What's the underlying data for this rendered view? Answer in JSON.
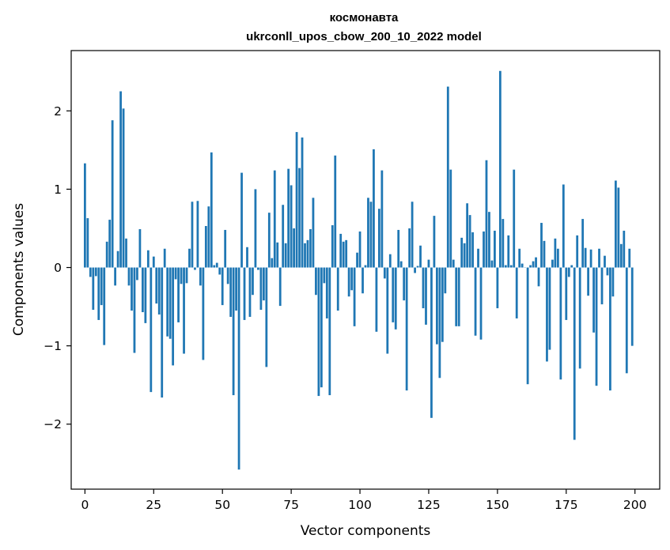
{
  "chart_data": {
    "type": "bar",
    "title": "космонавта",
    "subtitle": "ukrconll_upos_cbow_200_10_2022 model",
    "xlabel": "Vector components",
    "ylabel": "Components values",
    "xlim": [
      -5,
      209
    ],
    "ylim": [
      -2.83,
      2.77
    ],
    "xticks": [
      0,
      25,
      50,
      75,
      100,
      125,
      150,
      175,
      200
    ],
    "yticks": [
      -2,
      -1,
      0,
      1,
      2
    ],
    "ytick_labels": [
      "−2",
      "−1",
      "0",
      "1",
      "2"
    ],
    "grid": false,
    "color": "#1f77b4",
    "x": [
      0,
      1,
      2,
      3,
      4,
      5,
      6,
      7,
      8,
      9,
      10,
      11,
      12,
      13,
      14,
      15,
      16,
      17,
      18,
      19,
      20,
      21,
      22,
      23,
      24,
      25,
      26,
      27,
      28,
      29,
      30,
      31,
      32,
      33,
      34,
      35,
      36,
      37,
      38,
      39,
      40,
      41,
      42,
      43,
      44,
      45,
      46,
      47,
      48,
      49,
      50,
      51,
      52,
      53,
      54,
      55,
      56,
      57,
      58,
      59,
      60,
      61,
      62,
      63,
      64,
      65,
      66,
      67,
      68,
      69,
      70,
      71,
      72,
      73,
      74,
      75,
      76,
      77,
      78,
      79,
      80,
      81,
      82,
      83,
      84,
      85,
      86,
      87,
      88,
      89,
      90,
      91,
      92,
      93,
      94,
      95,
      96,
      97,
      98,
      99,
      100,
      101,
      102,
      103,
      104,
      105,
      106,
      107,
      108,
      109,
      110,
      111,
      112,
      113,
      114,
      115,
      116,
      117,
      118,
      119,
      120,
      121,
      122,
      123,
      124,
      125,
      126,
      127,
      128,
      129,
      130,
      131,
      132,
      133,
      134,
      135,
      136,
      137,
      138,
      139,
      140,
      141,
      142,
      143,
      144,
      145,
      146,
      147,
      148,
      149,
      150,
      151,
      152,
      153,
      154,
      155,
      156,
      157,
      158,
      159,
      160,
      161,
      162,
      163,
      164,
      165,
      166,
      167,
      168,
      169,
      170,
      171,
      172,
      173,
      174,
      175,
      176,
      177,
      178,
      179,
      180,
      181,
      182,
      183,
      184,
      185,
      186,
      187,
      188,
      189,
      190,
      191,
      192,
      193,
      194,
      195,
      196,
      197,
      198,
      199
    ],
    "values": [
      1.33,
      0.63,
      -0.12,
      -0.54,
      -0.11,
      -0.67,
      -0.48,
      -0.99,
      0.33,
      0.61,
      1.88,
      -0.23,
      0.21,
      2.25,
      2.03,
      0.37,
      -0.23,
      -0.55,
      -1.09,
      -0.16,
      0.49,
      -0.57,
      -0.71,
      0.22,
      -1.59,
      0.14,
      -0.46,
      -0.6,
      -1.66,
      0.24,
      -0.88,
      -0.91,
      -1.25,
      -0.15,
      -0.7,
      -0.21,
      -1.1,
      -0.2,
      0.24,
      0.84,
      -0.03,
      0.85,
      -0.23,
      -1.18,
      0.53,
      0.78,
      1.47,
      0.03,
      0.06,
      -0.09,
      -0.48,
      0.48,
      -0.21,
      -0.63,
      -1.63,
      -0.55,
      -2.58,
      1.21,
      -0.67,
      0.26,
      -0.63,
      -0.35,
      1.0,
      -0.03,
      -0.54,
      -0.42,
      -1.27,
      0.7,
      0.12,
      1.24,
      0.32,
      -0.49,
      0.8,
      0.31,
      1.26,
      1.05,
      0.5,
      1.73,
      1.27,
      1.66,
      0.31,
      0.35,
      0.49,
      0.89,
      -0.35,
      -1.64,
      -1.53,
      -0.2,
      -0.65,
      -1.63,
      0.54,
      1.43,
      -0.55,
      0.43,
      0.33,
      0.35,
      -0.37,
      -0.29,
      -0.75,
      0.19,
      0.46,
      -0.33,
      0.03,
      0.89,
      0.84,
      1.51,
      -0.82,
      0.75,
      1.24,
      -0.14,
      -1.1,
      0.17,
      -0.7,
      -0.79,
      0.48,
      0.08,
      -0.42,
      -1.57,
      0.5,
      0.84,
      -0.07,
      0.02,
      0.28,
      -0.52,
      -0.73,
      0.1,
      -1.92,
      0.66,
      -0.98,
      -1.41,
      -0.95,
      -0.33,
      2.31,
      1.25,
      0.1,
      -0.75,
      -0.75,
      0.38,
      0.31,
      0.82,
      0.67,
      0.45,
      -0.87,
      0.24,
      -0.92,
      0.46,
      1.37,
      0.71,
      0.09,
      0.47,
      -0.52,
      2.51,
      0.62,
      0.03,
      0.41,
      0.03,
      1.25,
      -0.65,
      0.24,
      0.05,
      0.0,
      -1.49,
      0.03,
      0.08,
      0.13,
      -0.24,
      0.57,
      0.34,
      -1.2,
      -1.05,
      0.1,
      0.37,
      0.24,
      -1.43,
      1.06,
      -0.67,
      -0.12,
      0.03,
      -2.2,
      0.41,
      -1.29,
      0.62,
      0.25,
      -0.36,
      0.23,
      -0.83,
      -1.51,
      0.24,
      -0.47,
      0.15,
      -0.1,
      -1.57,
      -0.37,
      1.11,
      1.02,
      0.3,
      0.47,
      -1.35,
      0.24,
      -1.0
    ]
  }
}
